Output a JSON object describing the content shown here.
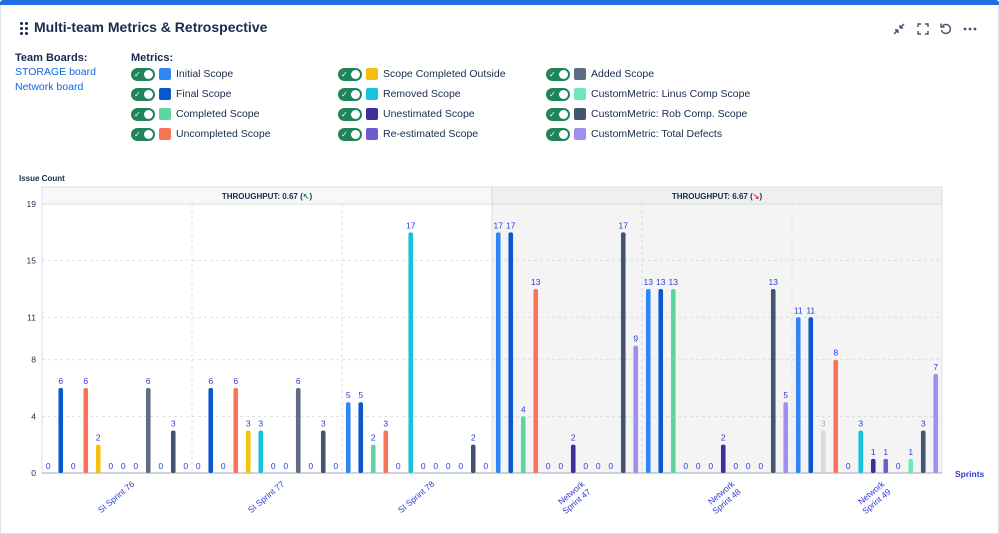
{
  "panel": {
    "title": "Multi-team Metrics & Retrospective"
  },
  "toolbar": {
    "minimize_icon": "minimize-icon",
    "fullscreen_icon": "fullscreen-icon",
    "refresh_icon": "refresh-icon",
    "more_icon": "more-icon"
  },
  "team_boards": {
    "label": "Team Boards:",
    "boards": [
      "STORAGE board",
      "Network board"
    ]
  },
  "metrics": {
    "label": "Metrics:",
    "items": [
      {
        "name": "Initial Scope",
        "color": "#2f86f6",
        "enabled": true
      },
      {
        "name": "Final Scope",
        "color": "#0b57d0",
        "enabled": true
      },
      {
        "name": "Completed Scope",
        "color": "#5fd4a0",
        "enabled": true
      },
      {
        "name": "Uncompleted Scope",
        "color": "#f87459",
        "enabled": true
      },
      {
        "name": "Scope Completed Outside",
        "color": "#f6c00e",
        "enabled": true
      },
      {
        "name": "Removed Scope",
        "color": "#16c3dd",
        "enabled": true
      },
      {
        "name": "Unestimated Scope",
        "color": "#3d2e9c",
        "enabled": true
      },
      {
        "name": "Re-estimated Scope",
        "color": "#6e5bcf",
        "enabled": true
      },
      {
        "name": "Added Scope",
        "color": "#5e6c84",
        "enabled": true
      },
      {
        "name": "CustomMetric: Linus Comp Scope",
        "color": "#6ee7b7",
        "enabled": true
      },
      {
        "name": "CustomMetric: Rob Comp. Scope",
        "color": "#44546f",
        "enabled": true
      },
      {
        "name": "CustomMetric: Total Defects",
        "color": "#9f8fef",
        "enabled": true
      }
    ]
  },
  "chart_data": {
    "type": "bar",
    "ylabel": "Issue Count",
    "xlabel": "Sprints",
    "ylim": [
      0,
      19
    ],
    "yticks": [
      0,
      4,
      8,
      11,
      15,
      19
    ],
    "grid": true,
    "groups": [
      {
        "team": "STORAGE board",
        "throughput_label": "THROUGHPUT: 0.67 (",
        "throughput_arrow": "↖",
        "throughput_arrow_color": "#1f845a",
        "throughput_close": ")"
      },
      {
        "team": "Network board",
        "throughput_label": "THROUGHPUT: 6.67 (",
        "throughput_arrow": "↘",
        "throughput_arrow_color": "#c9372c",
        "throughput_close": ")"
      }
    ],
    "categories": [
      "SI Sprint 76",
      "SI Sprint 77",
      "SI Sprint 78",
      "Network Sprint 47",
      "Network Sprint 48",
      "Network Sprint 49"
    ],
    "sprint_team": [
      0,
      0,
      0,
      1,
      1,
      1
    ],
    "sprints": [
      {
        "label": "SI Sprint 76",
        "bars": [
          {
            "s": "Initial Scope",
            "v": 0
          },
          {
            "s": "Final Scope",
            "v": 6
          },
          {
            "s": "Completed Scope",
            "v": 0
          },
          {
            "s": "Uncompleted Scope",
            "v": 6
          },
          {
            "s": "Scope Completed Outside",
            "v": 2
          },
          {
            "s": "Removed Scope",
            "v": 0
          },
          {
            "s": "Unestimated Scope",
            "v": 0
          },
          {
            "s": "Re-estimated Scope",
            "v": 0
          },
          {
            "s": "Added Scope",
            "v": 6
          },
          {
            "s": "CustomMetric: Linus Comp Scope",
            "v": 0
          },
          {
            "s": "CustomMetric: Rob Comp. Scope",
            "v": 3
          },
          {
            "s": "CustomMetric: Total Defects",
            "v": 0
          }
        ]
      },
      {
        "label": "SI Sprint 77",
        "bars": [
          {
            "s": "Initial Scope",
            "v": 0
          },
          {
            "s": "Final Scope",
            "v": 6
          },
          {
            "s": "Completed Scope",
            "v": 0
          },
          {
            "s": "Uncompleted Scope",
            "v": 6
          },
          {
            "s": "Scope Completed Outside",
            "v": 3
          },
          {
            "s": "Removed Scope",
            "v": 3
          },
          {
            "s": "Unestimated Scope",
            "v": 0
          },
          {
            "s": "Re-estimated Scope",
            "v": 0
          },
          {
            "s": "Added Scope",
            "v": 6
          },
          {
            "s": "CustomMetric: Linus Comp Scope",
            "v": 0
          },
          {
            "s": "CustomMetric: Rob Comp. Scope",
            "v": 3
          },
          {
            "s": "CustomMetric: Total Defects",
            "v": 0
          }
        ]
      },
      {
        "label": "SI Sprint 78",
        "bars": [
          {
            "s": "Initial Scope",
            "v": 5
          },
          {
            "s": "Final Scope",
            "v": 5
          },
          {
            "s": "Completed Scope",
            "v": 2
          },
          {
            "s": "Uncompleted Scope",
            "v": 3
          },
          {
            "s": "Scope Completed Outside",
            "v": 0
          },
          {
            "s": "Removed Scope",
            "v": 17
          },
          {
            "s": "Unestimated Scope",
            "v": 0
          },
          {
            "s": "Re-estimated Scope",
            "v": 0
          },
          {
            "s": "Added Scope",
            "v": 0
          },
          {
            "s": "CustomMetric: Linus Comp Scope",
            "v": 0
          },
          {
            "s": "CustomMetric: Rob Comp. Scope",
            "v": 2
          },
          {
            "s": "CustomMetric: Total Defects",
            "v": 0
          }
        ]
      },
      {
        "label": "Network Sprint 47",
        "bars": [
          {
            "s": "Initial Scope",
            "v": 17
          },
          {
            "s": "Final Scope",
            "v": 17
          },
          {
            "s": "Completed Scope",
            "v": 4
          },
          {
            "s": "Uncompleted Scope",
            "v": 13
          },
          {
            "s": "Scope Completed Outside",
            "v": 0
          },
          {
            "s": "Removed Scope",
            "v": 0
          },
          {
            "s": "Unestimated Scope",
            "v": 2
          },
          {
            "s": "Re-estimated Scope",
            "v": 0
          },
          {
            "s": "Added Scope",
            "v": 0
          },
          {
            "s": "CustomMetric: Linus Comp Scope",
            "v": 0
          },
          {
            "s": "CustomMetric: Rob Comp. Scope",
            "v": 17
          },
          {
            "s": "CustomMetric: Total Defects",
            "v": 9
          }
        ]
      },
      {
        "label": "Network Sprint 48",
        "bars": [
          {
            "s": "Initial Scope",
            "v": 13
          },
          {
            "s": "Final Scope",
            "v": 13
          },
          {
            "s": "Completed Scope",
            "v": 13
          },
          {
            "s": "Uncompleted Scope",
            "v": 0
          },
          {
            "s": "Scope Completed Outside",
            "v": 0
          },
          {
            "s": "Removed Scope",
            "v": 0
          },
          {
            "s": "Unestimated Scope",
            "v": 2
          },
          {
            "s": "Re-estimated Scope",
            "v": 0
          },
          {
            "s": "Added Scope",
            "v": 0
          },
          {
            "s": "CustomMetric: Linus Comp Scope",
            "v": 0
          },
          {
            "s": "CustomMetric: Rob Comp. Scope",
            "v": 13
          },
          {
            "s": "CustomMetric: Total Defects",
            "v": 5
          }
        ]
      },
      {
        "label": "Network Sprint 49",
        "bars": [
          {
            "s": "Initial Scope",
            "v": 11
          },
          {
            "s": "Final Scope",
            "v": 11
          },
          {
            "s": "Completed Scope",
            "v": 3,
            "muted": true
          },
          {
            "s": "Uncompleted Scope",
            "v": 8
          },
          {
            "s": "Scope Completed Outside",
            "v": 0
          },
          {
            "s": "Removed Scope",
            "v": 3
          },
          {
            "s": "Unestimated Scope",
            "v": 1
          },
          {
            "s": "Re-estimated Scope",
            "v": 1
          },
          {
            "s": "Added Scope",
            "v": 0
          },
          {
            "s": "CustomMetric: Linus Comp Scope",
            "v": 1
          },
          {
            "s": "CustomMetric: Rob Comp. Scope",
            "v": 3
          },
          {
            "s": "CustomMetric: Total Defects",
            "v": 7
          }
        ]
      }
    ]
  }
}
